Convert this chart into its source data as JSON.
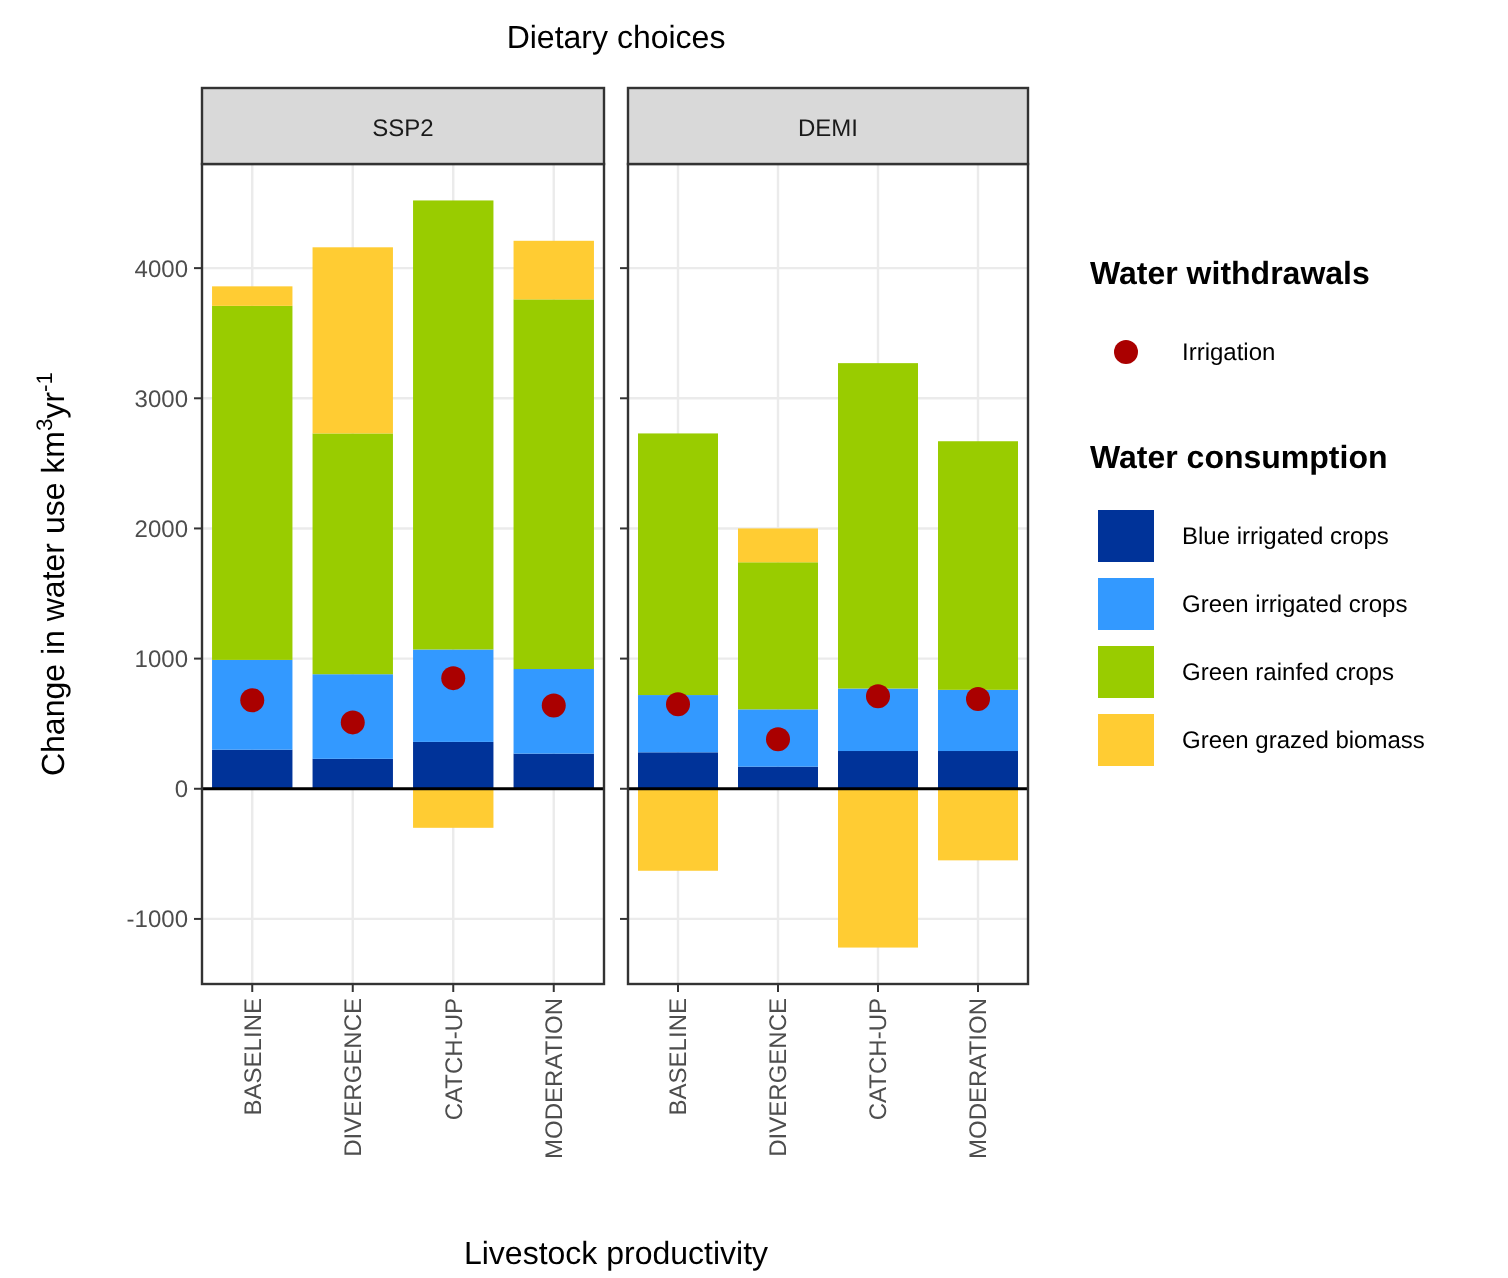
{
  "chart_data": [
    {
      "type": "bar",
      "title": "SSP2",
      "subtitle": "Dietary choices",
      "xlabel": "Livestock productivity",
      "ylabel": "Change in water use  km$^{3}$yr$^{-1}$",
      "legend_title": "Water withdrawals",
      "legend": "right",
      "grid": true,
      "stacked": true,
      "marker": "circle",
      "categories": [
        "BASELINE",
        "DIVERGENCE",
        "CATCH-UP",
        "MODERATION"
      ],
      "ylim": [
        -1500,
        4800
      ],
      "yticks": [
        -1000,
        0,
        1000,
        2000,
        3000,
        4000
      ],
      "ref_lines": [
        {
          "axis": "y",
          "value": 0,
          "color": "#000000"
        }
      ],
      "series": [
        {
          "name": "Blue irrigated crops",
          "color": "#003399",
          "values": [
            300,
            230,
            360,
            270
          ]
        },
        {
          "name": "Green irrigated crops",
          "color": "#3399ff",
          "values": [
            690,
            650,
            710,
            650
          ]
        },
        {
          "name": "Green rainfed crops",
          "color": "#99cc00",
          "values": [
            2720,
            1850,
            3450,
            2840
          ]
        },
        {
          "name": "Green grazed biomass",
          "color": "#ffcc33",
          "values": [
            150,
            1430,
            -300,
            450
          ]
        },
        {
          "name": "Irrigation",
          "type": "scatter",
          "color": "#aa0000",
          "x": [
            "BASELINE",
            "DIVERGENCE",
            "CATCH-UP",
            "MODERATION"
          ],
          "values": [
            680,
            510,
            850,
            640
          ]
        }
      ]
    },
    {
      "type": "bar",
      "title": "DEMI",
      "legend_title": "Water consumption",
      "legend": "right",
      "grid": true,
      "stacked": true,
      "marker": "circle",
      "tick_labels": "x",
      "categories": [
        "BASELINE",
        "DIVERGENCE",
        "CATCH-UP",
        "MODERATION"
      ],
      "ylim": [
        -1500,
        4800
      ],
      "yticks": [
        -1000,
        0,
        1000,
        2000,
        3000,
        4000
      ],
      "ref_lines": [
        {
          "axis": "y",
          "value": 0,
          "color": "#000000"
        }
      ],
      "series": [
        {
          "color": "#003399",
          "values": [
            280,
            170,
            290,
            290
          ]
        },
        {
          "color": "#3399ff",
          "values": [
            440,
            440,
            480,
            470
          ]
        },
        {
          "color": "#99cc00",
          "values": [
            2010,
            1130,
            2500,
            1910
          ]
        },
        {
          "color": "#ffcc33",
          "values": [
            -630,
            260,
            -1220,
            -550
          ]
        },
        {
          "type": "scatter",
          "color": "#aa0000",
          "x": [
            "BASELINE",
            "DIVERGENCE",
            "CATCH-UP",
            "MODERATION"
          ],
          "values": [
            650,
            380,
            710,
            690
          ]
        }
      ]
    }
  ]
}
